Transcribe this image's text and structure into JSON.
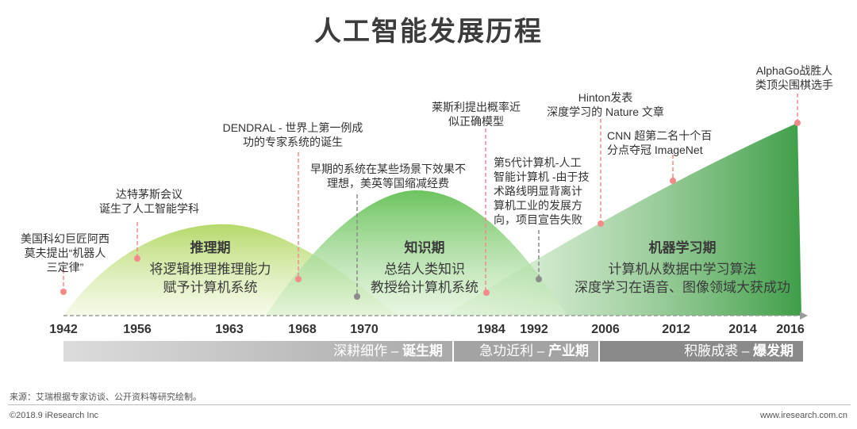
{
  "title": "人工智能发展历程",
  "colors": {
    "green_light": "#c8e39a",
    "green_mid": "#8fd27a",
    "green_dark": "#4aa74a",
    "marker": "#f48a8a",
    "marker_gray": "#8c8c8c",
    "band1": "#b9b9b9",
    "band2": "#a6a6a6",
    "band3": "#8e8e8e"
  },
  "phases": [
    {
      "name": "推理期",
      "desc1": "将逻辑推理推理能力",
      "desc2": "赋予计算机系统"
    },
    {
      "name": "知识期",
      "desc1": "总结人类知识",
      "desc2": "教授给计算机系统"
    },
    {
      "name": "机器学习期",
      "desc1": "计算机从数据中学习算法",
      "desc2": "深度学习在语音、图像领域大获成功"
    }
  ],
  "years": [
    "1942",
    "1956",
    "1963",
    "1968",
    "1970",
    "1984",
    "1992",
    "2006",
    "2012",
    "2014",
    "2016"
  ],
  "events": [
    {
      "lines": [
        "美国科幻巨匠阿西",
        "莫夫提出“机器人",
        "三定律”"
      ]
    },
    {
      "lines": [
        "达特茅斯会议",
        "诞生了人工智能学科"
      ]
    },
    {
      "lines": [
        "DENDRAL - 世界上第一例成",
        "功的专家系统的诞生"
      ]
    },
    {
      "lines": [
        "早期的系统在某些场景下效果不",
        "理想，美英等国缩减经费"
      ]
    },
    {
      "lines": [
        "莱斯利提出概率近",
        "似正确模型"
      ]
    },
    {
      "lines": [
        "第5代计算机-人工",
        "智能计算机 -由于技",
        "术路线明显背离计",
        "算机工业的发展方",
        "向，项目宣告失败"
      ]
    },
    {
      "lines": [
        "Hinton发表",
        "深度学习的 Nature 文章"
      ]
    },
    {
      "lines": [
        "CNN 超第二名十个百",
        "分点夺冠 ImageNet"
      ]
    },
    {
      "lines": [
        "AlphaGo战胜人",
        "类顶尖围棋选手"
      ]
    }
  ],
  "bands": [
    {
      "prefix": "深耕细作 – ",
      "bold": "诞生期"
    },
    {
      "prefix": "急功近利 – ",
      "bold": "产业期"
    },
    {
      "prefix": "积腋成裘 – ",
      "bold": "爆发期"
    }
  ],
  "source": "来源：艾瑞根据专家访谈、公开资料等研究绘制。",
  "copyright": "©2018.9 iResearch Inc",
  "website": "www.iresearch.com.cn"
}
